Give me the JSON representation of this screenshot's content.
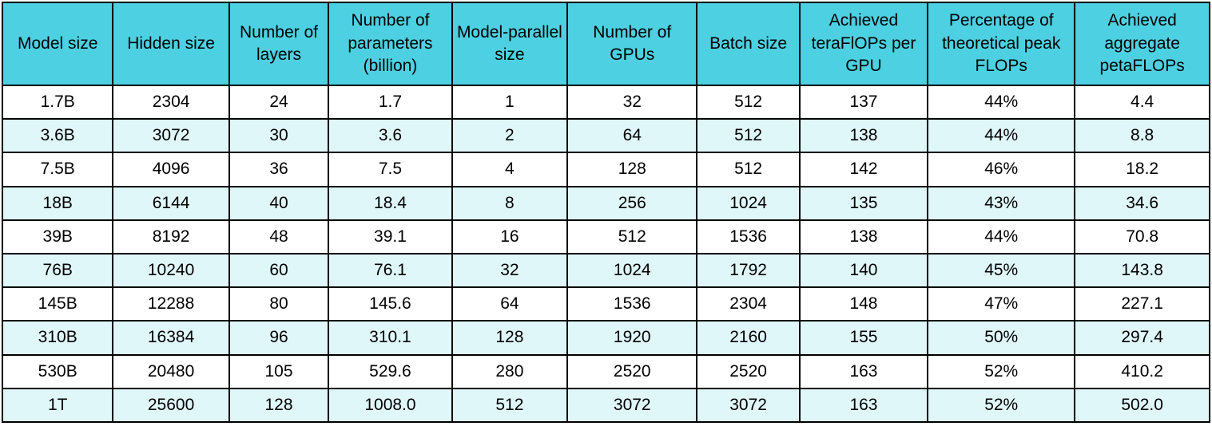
{
  "colors": {
    "header_bg": "#4dd0e1",
    "row_bg": "#ffffff",
    "row_alt_bg": "#e0f7fa",
    "border": "#000000",
    "text": "#000000"
  },
  "chart_data": {
    "type": "table",
    "columns": [
      "Model size",
      "Hidden size",
      "Number of layers",
      "Number of parameters (billion)",
      "Model-parallel size",
      "Number of GPUs",
      "Batch size",
      "Achieved teraFlOPs per GPU",
      "Percentage of theoretical peak FLOPs",
      "Achieved aggregate petaFLOPs"
    ],
    "rows": [
      [
        "1.7B",
        "2304",
        "24",
        "1.7",
        "1",
        "32",
        "512",
        "137",
        "44%",
        "4.4"
      ],
      [
        "3.6B",
        "3072",
        "30",
        "3.6",
        "2",
        "64",
        "512",
        "138",
        "44%",
        "8.8"
      ],
      [
        "7.5B",
        "4096",
        "36",
        "7.5",
        "4",
        "128",
        "512",
        "142",
        "46%",
        "18.2"
      ],
      [
        "18B",
        "6144",
        "40",
        "18.4",
        "8",
        "256",
        "1024",
        "135",
        "43%",
        "34.6"
      ],
      [
        "39B",
        "8192",
        "48",
        "39.1",
        "16",
        "512",
        "1536",
        "138",
        "44%",
        "70.8"
      ],
      [
        "76B",
        "10240",
        "60",
        "76.1",
        "32",
        "1024",
        "1792",
        "140",
        "45%",
        "143.8"
      ],
      [
        "145B",
        "12288",
        "80",
        "145.6",
        "64",
        "1536",
        "2304",
        "148",
        "47%",
        "227.1"
      ],
      [
        "310B",
        "16384",
        "96",
        "310.1",
        "128",
        "1920",
        "2160",
        "155",
        "50%",
        "297.4"
      ],
      [
        "530B",
        "20480",
        "105",
        "529.6",
        "280",
        "2520",
        "2520",
        "163",
        "52%",
        "410.2"
      ],
      [
        "1T",
        "25600",
        "128",
        "1008.0",
        "512",
        "3072",
        "3072",
        "163",
        "52%",
        "502.0"
      ]
    ]
  }
}
